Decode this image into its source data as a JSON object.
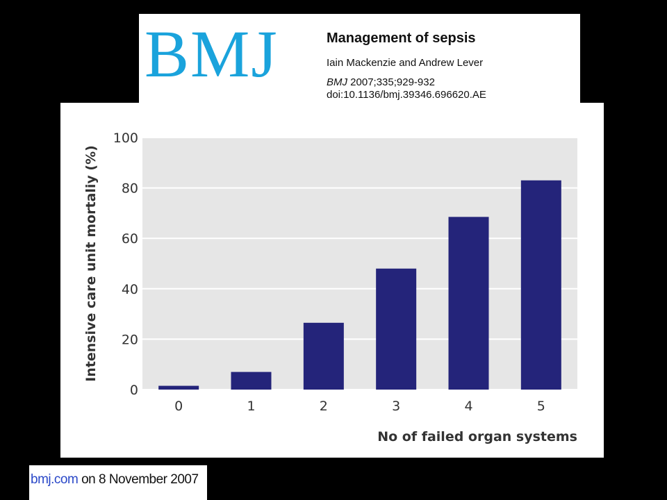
{
  "header": {
    "logo_text": "BMJ",
    "article_title": "Management of sepsis",
    "authors": "Iain Mackenzie and Andrew Lever",
    "citation_journal": "BMJ",
    "citation_details": " 2007;335;929-932",
    "doi": "doi:10.1136/bmj.39346.696620.AE"
  },
  "footer": {
    "site": "bmj.com",
    "date_text": " on 8 November 2007"
  },
  "colors": {
    "bar": "#24247a",
    "plot_background": "#e6e6e6",
    "gridline": "#ffffff",
    "logo": "#1aa3dc"
  },
  "chart_data": {
    "type": "bar",
    "categories": [
      "0",
      "1",
      "2",
      "3",
      "4",
      "5"
    ],
    "values": [
      1.5,
      7,
      26.5,
      48,
      68.5,
      83
    ],
    "xlabel": "No of failed organ systems",
    "ylabel": "Intensive care unit mortaliy (%)",
    "ylim": [
      0,
      100
    ],
    "yticks": [
      "0",
      "20",
      "40",
      "60",
      "80",
      "100"
    ],
    "grid": true
  }
}
